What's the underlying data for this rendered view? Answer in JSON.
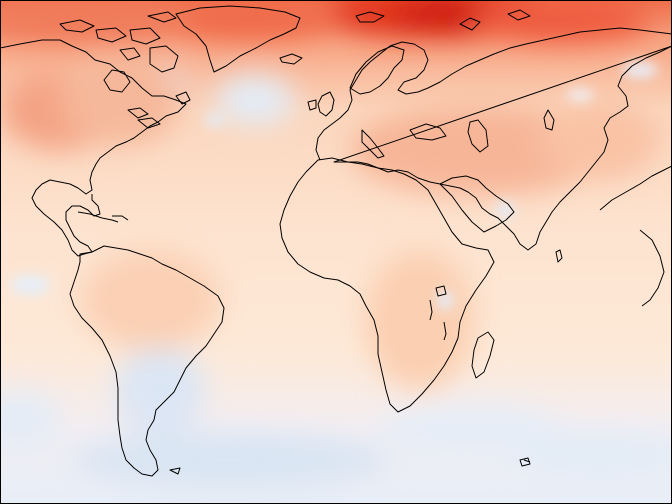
{
  "map": {
    "projection": "equirectangular",
    "variable": "temperature-anomaly",
    "colormap": {
      "warm_strong": "#e31a1c",
      "warm_mid": "#f4774e",
      "warm_light": "#fdd0b2",
      "neutral": "#fbeadb",
      "cool_light": "#dbe8f5",
      "cool_mid": "#b8cfe8"
    },
    "coastline_color": "#000000",
    "frame_color": "#000000"
  }
}
